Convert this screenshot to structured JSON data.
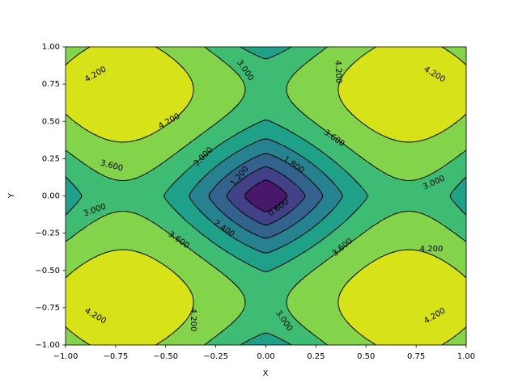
{
  "chart_data": {
    "type": "contourf",
    "xlabel": "X",
    "ylabel": "Y",
    "xlim": [
      -1,
      1
    ],
    "ylim": [
      -1,
      1
    ],
    "xticks": [
      {
        "value": -1,
        "label": "−1.00"
      },
      {
        "value": -0.75,
        "label": "−0.75"
      },
      {
        "value": -0.5,
        "label": "−0.50"
      },
      {
        "value": -0.25,
        "label": "−0.25"
      },
      {
        "value": 0,
        "label": "0.00"
      },
      {
        "value": 0.25,
        "label": "0.25"
      },
      {
        "value": 0.5,
        "label": "0.50"
      },
      {
        "value": 0.75,
        "label": "0.75"
      },
      {
        "value": 1,
        "label": "1.00"
      }
    ],
    "yticks": [
      {
        "value": -1,
        "label": "−1.00"
      },
      {
        "value": -0.75,
        "label": "−0.75"
      },
      {
        "value": -0.5,
        "label": "−0.50"
      },
      {
        "value": -0.25,
        "label": "−0.25"
      },
      {
        "value": 0,
        "label": "0.00"
      },
      {
        "value": 0.25,
        "label": "0.25"
      },
      {
        "value": 0.5,
        "label": "0.50"
      },
      {
        "value": 0.75,
        "label": "0.75"
      },
      {
        "value": 1,
        "label": "1.00"
      }
    ],
    "levels": [
      0,
      0.6,
      1.2,
      1.8,
      2.4,
      3.0,
      3.6,
      4.2,
      4.8
    ],
    "colors": [
      "#48186a",
      "#424086",
      "#33638d",
      "#26828e",
      "#1fa088",
      "#3fbc73",
      "#84d44b",
      "#d8e219"
    ],
    "line_color": "#000000",
    "contour_labels": [
      {
        "value": 4.2,
        "label": "4.200"
      },
      {
        "value": 3.0,
        "label": "3.000"
      },
      {
        "value": 4.2,
        "label": "4.200"
      },
      {
        "value": 4.2,
        "label": "4.200"
      },
      {
        "value": 4.2,
        "label": "4.200"
      },
      {
        "value": 3.6,
        "label": "3.600"
      },
      {
        "value": 3.6,
        "label": "3.600"
      },
      {
        "value": 3.0,
        "label": "3.000"
      },
      {
        "value": 1.8,
        "label": "1.800"
      },
      {
        "value": 1.2,
        "label": "1.200"
      },
      {
        "value": 3.0,
        "label": "3.000"
      },
      {
        "value": 3.0,
        "label": "3.000"
      },
      {
        "value": 0.6,
        "label": "0.600"
      },
      {
        "value": 2.4,
        "label": "2.400"
      },
      {
        "value": 3.6,
        "label": "3.600"
      },
      {
        "value": 3.6,
        "label": "3.600"
      },
      {
        "value": 4.2,
        "label": "4.200"
      },
      {
        "value": 4.2,
        "label": "4.200"
      },
      {
        "value": 4.2,
        "label": "4.200"
      },
      {
        "value": 3.0,
        "label": "3.000"
      },
      {
        "value": 4.2,
        "label": "4.200"
      }
    ]
  }
}
